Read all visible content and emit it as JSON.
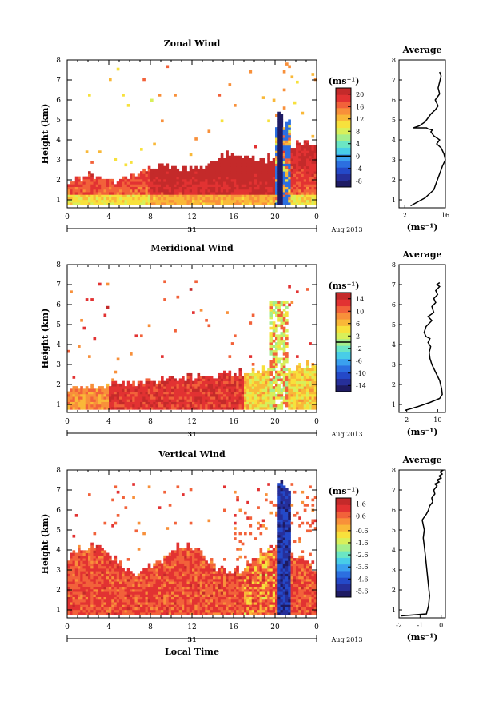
{
  "chart_data": [
    {
      "type": "heatmap",
      "title": "Zonal Wind",
      "ylabel": "Height (km)",
      "xlabel": "",
      "x_ticks": [
        "0",
        "4",
        "8",
        "12",
        "16",
        "20",
        "0"
      ],
      "y_ticks": [
        "1",
        "2",
        "3",
        "4",
        "5",
        "6",
        "7",
        "8"
      ],
      "date_day": "31",
      "date_month": "Aug 2013",
      "xlim": [
        0,
        24
      ],
      "ylim": [
        0.6,
        8
      ],
      "colorbar": {
        "unit": "(ms⁻¹)",
        "ticks": [
          "-8",
          "-4",
          "0",
          "4",
          "8",
          "12",
          "16",
          "20"
        ],
        "range": [
          -10,
          22
        ],
        "zero_line": 0
      },
      "average": {
        "title": "Average",
        "xlabel": "(ms⁻¹)",
        "x_ticks": [
          "2",
          "16"
        ],
        "xlim": [
          0,
          16
        ],
        "ylim": [
          0.6,
          8
        ],
        "x": [
          4,
          9,
          12,
          13,
          14,
          15,
          16,
          15.5,
          14.5,
          13,
          14,
          12,
          11,
          11.5,
          10,
          9.5,
          9,
          5,
          7,
          9,
          10,
          11,
          12.5,
          13.5,
          12.5,
          14,
          13.5,
          14,
          14.5,
          14
        ],
        "y": [
          0.7,
          1.1,
          1.5,
          1.9,
          2.3,
          2.7,
          3.0,
          3.3,
          3.6,
          3.8,
          4.0,
          4.2,
          4.4,
          4.5,
          4.55,
          4.6,
          4.6,
          4.6,
          4.7,
          4.9,
          5.1,
          5.3,
          5.5,
          5.7,
          6.0,
          6.3,
          6.6,
          6.9,
          7.2,
          7.4
        ]
      }
    },
    {
      "type": "heatmap",
      "title": "Meridional Wind",
      "ylabel": "Height (km)",
      "xlabel": "",
      "x_ticks": [
        "0",
        "4",
        "8",
        "12",
        "16",
        "20",
        "0"
      ],
      "y_ticks": [
        "1",
        "2",
        "3",
        "4",
        "5",
        "6",
        "7",
        "8"
      ],
      "date_day": "31",
      "date_month": "Aug 2013",
      "xlim": [
        0,
        24
      ],
      "ylim": [
        0.6,
        8
      ],
      "colorbar": {
        "unit": "(ms⁻¹)",
        "ticks": [
          "-14",
          "-10",
          "-6",
          "-2",
          "2",
          "6",
          "10",
          "14"
        ],
        "range": [
          -16,
          16
        ],
        "zero_line": 0
      },
      "average": {
        "title": "Average",
        "xlabel": "(ms⁻¹)",
        "x_ticks": [
          "2",
          "10"
        ],
        "xlim": [
          0,
          12
        ],
        "ylim": [
          0.6,
          8
        ],
        "x": [
          1.5,
          5,
          8,
          10.5,
          11.2,
          11,
          10.5,
          9.5,
          8.5,
          8,
          7.8,
          8.2,
          7.5,
          8,
          7,
          6.5,
          7,
          8.5,
          7.5,
          9,
          8.5,
          9.5,
          9,
          10,
          9.5,
          10.5,
          9.8,
          10.5
        ],
        "y": [
          0.7,
          0.9,
          1.1,
          1.3,
          1.5,
          1.8,
          2.2,
          2.6,
          3.0,
          3.3,
          3.6,
          3.9,
          4.1,
          4.3,
          4.4,
          4.6,
          4.9,
          5.2,
          5.4,
          5.6,
          5.9,
          6.1,
          6.3,
          6.5,
          6.7,
          6.9,
          7.0,
          7.1
        ]
      }
    },
    {
      "type": "heatmap",
      "title": "Vertical Wind",
      "ylabel": "Height (km)",
      "xlabel": "Local Time",
      "x_ticks": [
        "0",
        "4",
        "8",
        "12",
        "16",
        "20",
        "0"
      ],
      "y_ticks": [
        "1",
        "2",
        "3",
        "4",
        "5",
        "6",
        "7",
        "8"
      ],
      "date_day": "31",
      "date_month": "Aug 2013",
      "xlim": [
        0,
        24
      ],
      "ylim": [
        0.6,
        8
      ],
      "colorbar": {
        "unit": "(ms⁻¹)",
        "ticks": [
          "-5.6",
          "-4.6",
          "-3.6",
          "-2.6",
          "-1.6",
          "-0.6",
          "0.6",
          "1.6"
        ],
        "range": [
          -6.1,
          2.1
        ]
      },
      "average": {
        "title": "Average",
        "xlabel": "(ms⁻¹)",
        "x_ticks": [
          "-2",
          "-1",
          "0"
        ],
        "xlim": [
          -2,
          0.2
        ],
        "ylim": [
          0.6,
          8
        ],
        "x": [
          -1.9,
          -0.7,
          -0.6,
          -0.55,
          -0.6,
          -0.65,
          -0.7,
          -0.75,
          -0.8,
          -0.85,
          -0.8,
          -0.9,
          -0.7,
          -0.6,
          -0.55,
          -0.4,
          -0.45,
          -0.3,
          -0.35,
          -0.2,
          -0.3,
          -0.1,
          -0.2,
          0.0,
          -0.1,
          0.05,
          -0.05,
          0.1
        ],
        "y": [
          0.7,
          0.8,
          1.2,
          1.7,
          2.2,
          2.7,
          3.2,
          3.7,
          4.2,
          4.6,
          5.0,
          5.5,
          5.8,
          6.0,
          6.2,
          6.4,
          6.6,
          6.8,
          7.0,
          7.2,
          7.3,
          7.4,
          7.5,
          7.6,
          7.7,
          7.8,
          7.9,
          8.0
        ]
      }
    }
  ]
}
